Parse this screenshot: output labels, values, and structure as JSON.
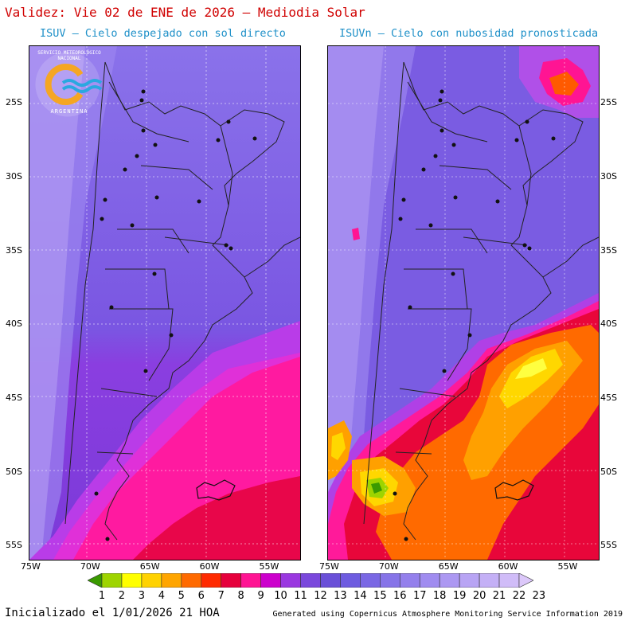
{
  "title": "Validez: Vie 02 de ENE de 2026 — Mediodia Solar",
  "left_panel": {
    "subtitle": "ISUV — Cielo despejado con sol directo"
  },
  "right_panel": {
    "subtitle": "ISUVn — Cielo con nubosidad pronosticada"
  },
  "logo": {
    "top_text": "SERVICIO METEOROLÓGICO NACIONAL",
    "bottom_text": "ARGENTINA"
  },
  "lat_labels": [
    "25S",
    "30S",
    "35S",
    "40S",
    "45S",
    "50S",
    "55S"
  ],
  "lat_values": [
    25,
    30,
    35,
    40,
    45,
    50,
    55
  ],
  "lon_labels": [
    "75W",
    "70W",
    "65W",
    "60W",
    "55W"
  ],
  "lon_values": [
    75,
    70,
    65,
    60,
    55
  ],
  "colorbar": {
    "labels": [
      "1",
      "2",
      "3",
      "4",
      "5",
      "6",
      "7",
      "8",
      "9",
      "10",
      "11",
      "12",
      "13",
      "14",
      "15",
      "16",
      "17",
      "18",
      "19",
      "20",
      "21",
      "22",
      "23"
    ],
    "colors": [
      "#3a9a00",
      "#9ed400",
      "#ffff00",
      "#ffd200",
      "#ffa500",
      "#ff6a00",
      "#ff2a00",
      "#e6003c",
      "#ff1493",
      "#cc00cc",
      "#9a38e0",
      "#7a48dc",
      "#6a50d8",
      "#6e5ce0",
      "#7a68e4",
      "#8674e8",
      "#9480ec",
      "#a08cf0",
      "#ac98f2",
      "#b8a4f4",
      "#c4b0f6",
      "#d0bcf8",
      "#dcc8fa"
    ]
  },
  "footer": {
    "init": "Inicializado el 1/01/2026 21 HOA",
    "credit": "Generated using Copernicus Atmosphere Monitoring Service Information 2019"
  }
}
